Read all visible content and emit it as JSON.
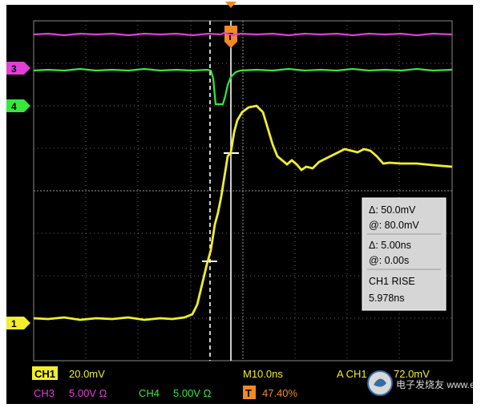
{
  "channels": {
    "ch1": {
      "marker": "1",
      "color": "#f2ee2b"
    },
    "ch3": {
      "marker": "3",
      "color": "#e23ed8"
    },
    "ch4": {
      "marker": "4",
      "color": "#39e63b"
    }
  },
  "trigger": {
    "marker": "T",
    "color": "#f08a24"
  },
  "readout": {
    "delta_v": "Δ: 50.0mV",
    "at_v": "@: 80.0mV",
    "delta_t": "Δ: 5.00ns",
    "at_t": "@: 0.00s",
    "measure_title": "CH1 RISE",
    "measure_value": "5.978ns"
  },
  "status": {
    "ch1_label": "CH1",
    "ch1_scale": "20.0mV",
    "timebase": "M10.0ns",
    "trigger_source": "A  CH1",
    "trigger_level": "72.0mV",
    "ch3_label": "CH3",
    "ch3_scale": "5.00V Ω",
    "ch4_label": "CH4",
    "ch4_scale": "5.00V Ω",
    "trigger_badge": "T",
    "trigger_position": "47.40%"
  },
  "watermark": "电子发烧友 www.elecfans.com"
}
